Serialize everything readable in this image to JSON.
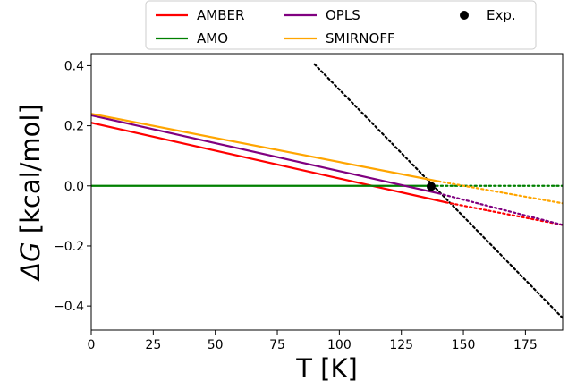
{
  "chart_data": {
    "type": "line",
    "title": "",
    "xlabel": "T [K]",
    "ylabel_symbol": "ΔG",
    "ylabel_unit": "[kcal/mol]",
    "xlim": [
      0,
      190
    ],
    "ylim": [
      -0.48,
      0.44
    ],
    "xticks": [
      0,
      25,
      50,
      75,
      100,
      125,
      150,
      175
    ],
    "xtick_labels": [
      "0",
      "25",
      "50",
      "75",
      "100",
      "125",
      "150",
      "175"
    ],
    "yticks": [
      -0.4,
      -0.2,
      0.0,
      0.2,
      0.4
    ],
    "ytick_labels": [
      "−0.4",
      "−0.2",
      "0.0",
      "0.2",
      "0.4"
    ],
    "grid": false,
    "legend_position": "top, above plot",
    "series": [
      {
        "name": "AMBER",
        "color": "#ff0000",
        "solid": [
          [
            0,
            0.21
          ],
          [
            143,
            -0.055
          ]
        ],
        "dotted": [
          [
            143,
            -0.055
          ],
          [
            190,
            -0.13
          ]
        ]
      },
      {
        "name": "AMO",
        "color": "#008000",
        "solid": [
          [
            0,
            0.0
          ],
          [
            137,
            0.0
          ]
        ],
        "dotted": [
          [
            137,
            0.0
          ],
          [
            190,
            0.0
          ]
        ]
      },
      {
        "name": "OPLS",
        "color": "#800080",
        "solid": [
          [
            0,
            0.235
          ],
          [
            140,
            -0.025
          ]
        ],
        "dotted": [
          [
            140,
            -0.025
          ],
          [
            190,
            -0.13
          ]
        ]
      },
      {
        "name": "SMIRNOFF",
        "color": "#ffa500",
        "solid": [
          [
            0,
            0.24
          ],
          [
            140,
            0.015
          ]
        ],
        "dotted": [
          [
            140,
            0.015
          ],
          [
            190,
            -0.058
          ]
        ]
      }
    ],
    "reference_line": {
      "color": "#000000",
      "dotted": [
        [
          90,
          0.405
        ],
        [
          190,
          -0.44
        ]
      ]
    },
    "exp_point": {
      "name": "Exp.",
      "color": "#000000",
      "x": 137,
      "y": -0.002
    }
  }
}
